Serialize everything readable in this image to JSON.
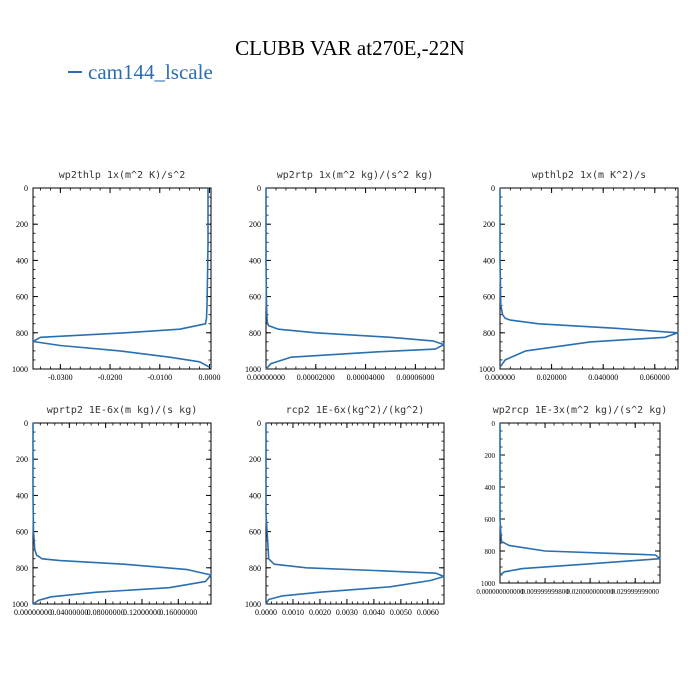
{
  "title": "CLUBB VAR at270E,-22N",
  "legend": {
    "label": "cam144_lscale",
    "color": "#2a6fb0"
  },
  "chart_data": [
    {
      "type": "line",
      "title": "wp2thlp   1x(m^2 K)/s^2",
      "xlim": [
        -0.0355,
        0.0003
      ],
      "ylim": [
        1000,
        0
      ],
      "xticks": [
        -0.03,
        -0.02,
        -0.01,
        0.0
      ],
      "xtick_labels": [
        "-0.0300",
        "-0.0200",
        "-0.0100",
        "0.0000"
      ],
      "yticks": [
        0,
        200,
        400,
        600,
        800,
        1000
      ],
      "series": [
        {
          "x": [
            -0.0003,
            -0.0003,
            -0.0004,
            -0.0005,
            -0.0006,
            -0.0008,
            -0.006,
            -0.017,
            -0.034,
            -0.0355,
            -0.03,
            -0.018,
            -0.008,
            -0.002,
            0.0
          ],
          "y": [
            0,
            300,
            500,
            650,
            720,
            750,
            780,
            800,
            825,
            848,
            870,
            900,
            935,
            960,
            990
          ]
        }
      ]
    },
    {
      "type": "line",
      "title": "wp2rtp   1x(m^2 kg)/(s^2 kg)",
      "xlim": [
        0,
        7.15e-05
      ],
      "ylim": [
        1000,
        0
      ],
      "xticks": [
        0,
        2e-05,
        4e-05,
        6e-05
      ],
      "xtick_labels": [
        "0.00000000",
        "0.00002000",
        "0.00004000",
        "0.00006000"
      ],
      "yticks": [
        0,
        200,
        400,
        600,
        800,
        1000
      ],
      "series": [
        {
          "x": [
            0,
            0,
            2e-07,
            5e-07,
            1e-06,
            5e-06,
            2e-05,
            5e-05,
            6.7e-05,
            7.15e-05,
            6.8e-05,
            4.5e-05,
            1e-05,
            2e-06,
            0
          ],
          "y": [
            0,
            400,
            650,
            740,
            760,
            780,
            800,
            825,
            845,
            865,
            890,
            905,
            935,
            970,
            1000
          ]
        }
      ]
    },
    {
      "type": "line",
      "title": "wpthlp2   1x(m K^2)/s",
      "xlim": [
        0,
        0.069
      ],
      "ylim": [
        1000,
        0
      ],
      "xticks": [
        0,
        0.02,
        0.04,
        0.06
      ],
      "xtick_labels": [
        "0.000000",
        "0.020000",
        "0.040000",
        "0.060000"
      ],
      "yticks": [
        0,
        200,
        400,
        600,
        800,
        1000
      ],
      "series": [
        {
          "x": [
            0,
            0,
            0.0003,
            0.001,
            0.002,
            0.004,
            0.015,
            0.045,
            0.069,
            0.064,
            0.035,
            0.01,
            0.002,
            0
          ],
          "y": [
            0,
            400,
            650,
            700,
            720,
            730,
            750,
            775,
            800,
            825,
            850,
            900,
            950,
            990
          ]
        }
      ]
    },
    {
      "type": "line",
      "title": "wprtp2   1E-6x(m kg)/(s kg)",
      "xlim": [
        0,
        0.196
      ],
      "ylim": [
        1000,
        0
      ],
      "xticks": [
        0,
        0.04,
        0.08,
        0.12,
        0.16
      ],
      "xtick_labels": [
        "0.00000000",
        "0.04000000",
        "0.08000000",
        "0.12000000",
        "0.16000000"
      ],
      "yticks": [
        0,
        200,
        400,
        600,
        800,
        1000
      ],
      "series": [
        {
          "x": [
            0,
            0,
            0.0005,
            0.002,
            0.004,
            0.01,
            0.03,
            0.1,
            0.17,
            0.196,
            0.19,
            0.15,
            0.07,
            0.02,
            0.006,
            0
          ],
          "y": [
            0,
            400,
            600,
            700,
            730,
            750,
            760,
            780,
            810,
            840,
            875,
            910,
            935,
            960,
            980,
            1000
          ]
        }
      ]
    },
    {
      "type": "line",
      "title": "rcp2   1E-6x(kg^2)/(kg^2)",
      "xlim": [
        0,
        0.0066
      ],
      "ylim": [
        1000,
        0
      ],
      "xticks": [
        0,
        0.001,
        0.002,
        0.003,
        0.004,
        0.005,
        0.006
      ],
      "xtick_labels": [
        "0.0000",
        "0.0010",
        "0.0020",
        "0.0030",
        "0.0040",
        "0.0050",
        "0.0060"
      ],
      "yticks": [
        0,
        200,
        400,
        600,
        800,
        1000
      ],
      "series": [
        {
          "x": [
            0,
            0,
            0.0001,
            0.0003,
            0.0015,
            0.004,
            0.0063,
            0.0066,
            0.0061,
            0.0046,
            0.002,
            0.0006,
            0.0001,
            0
          ],
          "y": [
            0,
            500,
            750,
            780,
            800,
            815,
            830,
            848,
            870,
            905,
            935,
            955,
            975,
            1000
          ]
        }
      ]
    },
    {
      "type": "line",
      "title": "wp2rcp   1E-3x(m^2 kg)/(s^2 kg)",
      "xlim": [
        0,
        0.0355
      ],
      "ylim": [
        1000,
        0
      ],
      "xticks": [
        0,
        0.01,
        0.02,
        0.03
      ],
      "xtick_labels": [
        "0.000000000000",
        "0.009999999800",
        "0.020000000000",
        "0.029999999000"
      ],
      "yticks": [
        0,
        200,
        400,
        600,
        800,
        1000
      ],
      "series": [
        {
          "x": [
            0,
            0,
            0.0003,
            0.002,
            0.01,
            0.025,
            0.0345,
            0.0355,
            0.02,
            0.005,
            0.001,
            0
          ],
          "y": [
            0,
            600,
            740,
            765,
            800,
            815,
            825,
            848,
            880,
            910,
            930,
            950
          ]
        }
      ]
    }
  ]
}
